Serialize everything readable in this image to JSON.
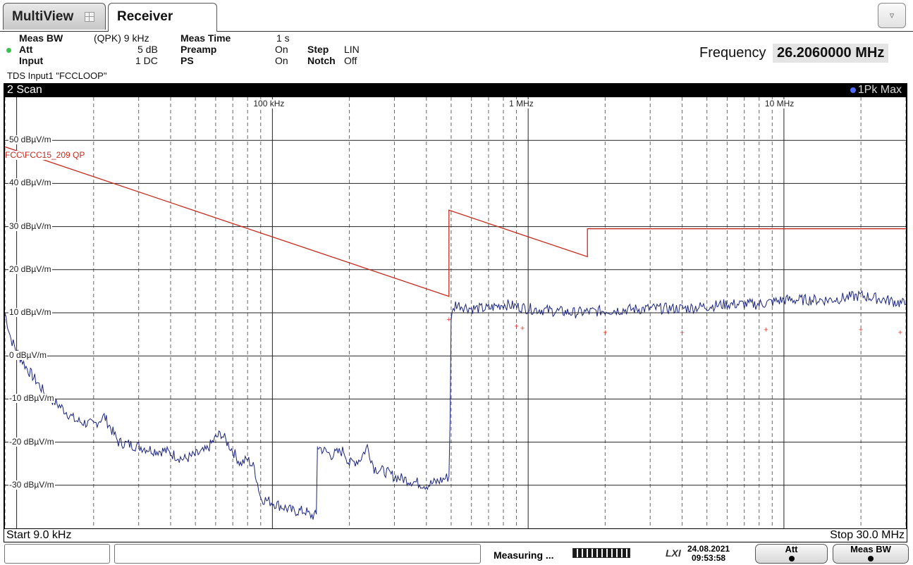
{
  "tabs": {
    "multiview": "MultiView",
    "receiver": "Receiver"
  },
  "menu_button": "▿",
  "settings": {
    "meas_bw_label": "Meas BW",
    "meas_bw_value": "(QPK) 9 kHz",
    "att_label": "Att",
    "att_value": "5 dB",
    "input_label": "Input",
    "input_value": "1 DC",
    "meas_time_label": "Meas Time",
    "meas_time_value": "1 s",
    "preamp_label": "Preamp",
    "preamp_value": "On",
    "ps_label": "PS",
    "ps_value": "On",
    "step_label": "Step",
    "step_value": "LIN",
    "notch_label": "Notch",
    "notch_value": "Off",
    "tds_input": "TDS Input1 \"FCCLOOP\""
  },
  "frequency": {
    "label": "Frequency",
    "value": "26.2060000 MHz"
  },
  "scan": {
    "title": "2 Scan",
    "trace_label": "1Pk Max"
  },
  "limit_line_label": "FCC\\FCC15_209 QP",
  "start_label": "Start 9.0 kHz",
  "stop_label": "Stop 30.0 MHz",
  "status": {
    "measuring": "Measuring ...",
    "lxi": "LXI",
    "date": "24.08.2021",
    "time": "09:53:58",
    "att_button": "Att",
    "meas_bw_button": "Meas BW"
  },
  "colors": {
    "trace": "#1a237e",
    "limit": "#c62a1c",
    "marker": "#e53935"
  },
  "chart_data": {
    "type": "line",
    "x_scale": "log",
    "xlim_hz": [
      9000,
      30000000
    ],
    "ylim": [
      -40,
      60
    ],
    "y_unit": "dBµV/m",
    "y_ticks": [
      {
        "value": 50,
        "label": "50 dBµV/m"
      },
      {
        "value": 40,
        "label": "40 dBµV/m"
      },
      {
        "value": 30,
        "label": "30 dBµV/m"
      },
      {
        "value": 20,
        "label": "20 dBµV/m"
      },
      {
        "value": 10,
        "label": "10 dBµV/m"
      },
      {
        "value": 0,
        "label": "0 dBµV/m"
      },
      {
        "value": -10,
        "label": "-10 dBµV/m"
      },
      {
        "value": -20,
        "label": "-20 dBµV/m"
      },
      {
        "value": -30,
        "label": "-30 dBµV/m"
      }
    ],
    "x_ticks": [
      {
        "value": 100000,
        "label": "100 kHz"
      },
      {
        "value": 1000000,
        "label": "1 MHz"
      },
      {
        "value": 10000000,
        "label": "10 MHz"
      }
    ],
    "grid": true,
    "series": [
      {
        "name": "1Pk Max",
        "x": [
          9000,
          9500,
          10000,
          11000,
          12000,
          13000,
          15000,
          17000,
          20000,
          22000,
          25000,
          30000,
          35000,
          38000,
          45000,
          55000,
          60000,
          63000,
          70000,
          75000,
          80000,
          85000,
          90000,
          100000,
          110000,
          120000,
          135000,
          140000,
          150000,
          170000,
          190000,
          200000,
          220000,
          235000,
          250000,
          280000,
          300000,
          350000,
          400000,
          450000,
          490000,
          495000,
          500000,
          520000,
          600000,
          700000,
          800000,
          1000000,
          1500000,
          2000000,
          3000000,
          4000000,
          5000000,
          6000000,
          8000000,
          10000000,
          12000000,
          15000000,
          20000000,
          25000000,
          30000000
        ],
        "values": [
          10,
          4,
          1,
          -3,
          -6,
          -9,
          -12,
          -15,
          -16,
          -14,
          -20,
          -21,
          -22,
          -22,
          -24,
          -22,
          -19,
          -18,
          -22,
          -25,
          -24,
          -26,
          -33,
          -34,
          -35,
          -36,
          -36,
          -37,
          -21,
          -23,
          -22,
          -25,
          -24,
          -21,
          -26,
          -27,
          -28,
          -29,
          -30,
          -29,
          -28,
          -15,
          9,
          12,
          11,
          11,
          12,
          11,
          10,
          10.5,
          11,
          11,
          11.5,
          12,
          12,
          13,
          13,
          13,
          14,
          13,
          12
        ]
      }
    ],
    "limit_line": {
      "name": "FCC\\FCC15_209 QP",
      "x": [
        9000,
        490000,
        490001,
        1705000,
        1705001,
        30000000
      ],
      "values": [
        48.5,
        13.8,
        33.8,
        23.0,
        29.5,
        29.5
      ]
    },
    "markers": {
      "x": [
        490000,
        900000,
        950000,
        2000000,
        4000000,
        8500000,
        20000000,
        28500000
      ],
      "values": [
        8.5,
        7.0,
        6.5,
        5.5,
        5.5,
        6.2,
        6.2,
        5.5
      ]
    }
  }
}
